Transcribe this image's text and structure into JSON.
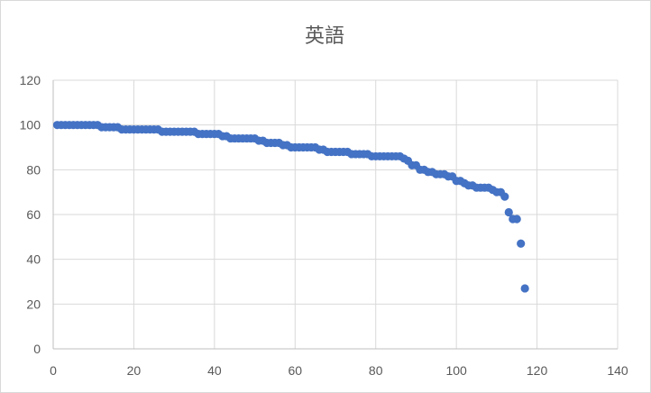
{
  "chart_data": {
    "type": "scatter",
    "title": "英語",
    "xlabel": "",
    "ylabel": "",
    "xlim": [
      0,
      140
    ],
    "ylim": [
      0,
      120
    ],
    "x_ticks": [
      "0",
      "20",
      "40",
      "60",
      "80",
      "100",
      "120",
      "140"
    ],
    "y_ticks": [
      "0",
      "20",
      "40",
      "60",
      "80",
      "100",
      "120"
    ],
    "grid": true,
    "legend": "none",
    "marker_color": "#4472c4",
    "gridline_color": "#d9d9d9",
    "series": [
      {
        "x": [
          1,
          2,
          3,
          4,
          5,
          6,
          7,
          8,
          9,
          10,
          11,
          12,
          13,
          14,
          15,
          16,
          17,
          18,
          19,
          20,
          21,
          22,
          23,
          24,
          25,
          26,
          27,
          28,
          29,
          30,
          31,
          32,
          33,
          34,
          35,
          36,
          37,
          38,
          39,
          40,
          41,
          42,
          43,
          44,
          45,
          46,
          47,
          48,
          49,
          50,
          51,
          52,
          53,
          54,
          55,
          56,
          57,
          58,
          59,
          60,
          61,
          62,
          63,
          64,
          65,
          66,
          67,
          68,
          69,
          70,
          71,
          72,
          73,
          74,
          75,
          76,
          77,
          78,
          79,
          80,
          81,
          82,
          83,
          84,
          85,
          86,
          87,
          88,
          89,
          90,
          91,
          92,
          93,
          94,
          95,
          96,
          97,
          98,
          99,
          100,
          101,
          102,
          103,
          104,
          105,
          106,
          107,
          108,
          109,
          110,
          111,
          112,
          113,
          114,
          115,
          116,
          117
        ],
        "y": [
          100,
          100,
          100,
          100,
          100,
          100,
          100,
          100,
          100,
          100,
          100,
          99,
          99,
          99,
          99,
          99,
          98,
          98,
          98,
          98,
          98,
          98,
          98,
          98,
          98,
          98,
          97,
          97,
          97,
          97,
          97,
          97,
          97,
          97,
          97,
          96,
          96,
          96,
          96,
          96,
          96,
          95,
          95,
          94,
          94,
          94,
          94,
          94,
          94,
          94,
          93,
          93,
          92,
          92,
          92,
          92,
          91,
          91,
          90,
          90,
          90,
          90,
          90,
          90,
          90,
          89,
          89,
          88,
          88,
          88,
          88,
          88,
          88,
          87,
          87,
          87,
          87,
          87,
          86,
          86,
          86,
          86,
          86,
          86,
          86,
          86,
          85,
          84,
          82,
          82,
          80,
          80,
          79,
          79,
          78,
          78,
          78,
          77,
          77,
          75,
          75,
          74,
          73,
          73,
          72,
          72,
          72,
          72,
          71,
          70,
          70,
          68,
          61,
          58,
          58,
          47,
          27
        ]
      }
    ]
  }
}
